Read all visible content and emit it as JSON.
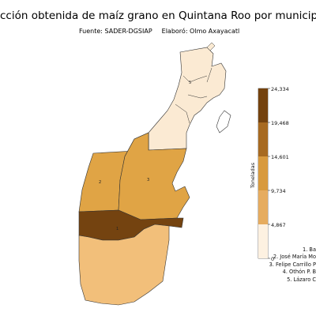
{
  "title": "cción obtenida de maíz grano en Quintana Roo por municipio (",
  "source": "Fuente: SADER-DGSIAP",
  "author": "Elaboró: Olmo Axayacatl",
  "colorbar": {
    "label": "Toneladas",
    "ticks": [
      "24,334",
      "19,468",
      "14,601",
      "9,734",
      "4,867",
      "0"
    ],
    "colors": [
      "#fdf1e1",
      "#f2c88a",
      "#e6ac5f",
      "#d89a3e",
      "#a76a21",
      "#74420e"
    ]
  },
  "municipalities": [
    {
      "id": "5",
      "value": 2500,
      "color": "#fbead3"
    },
    {
      "id": "3",
      "value": 15500,
      "color": "#e0a445"
    },
    {
      "id": "2",
      "value": 15500,
      "color": "#e0a445"
    },
    {
      "id": "1",
      "value": 24334,
      "color": "#744310"
    },
    {
      "id": "4",
      "value": 9000,
      "color": "#f2bf7a"
    }
  ],
  "legend_items": [
    "1. Ba",
    "2. José María Mo",
    "3. Felipe Carrillo P",
    "4. Othón P. B",
    "5. Lázaro C"
  ]
}
